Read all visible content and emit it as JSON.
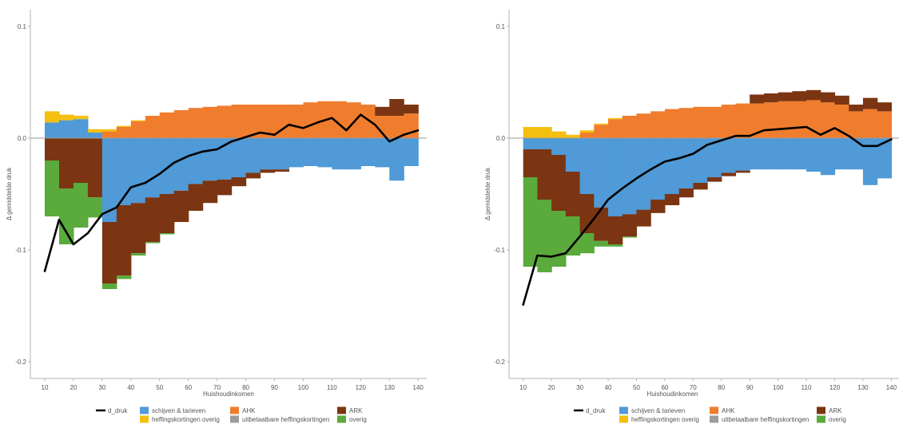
{
  "chart_data": [
    {
      "type": "area",
      "xlabel": "Huishoudinkomen",
      "ylabel": "Δ gemiddelde druk",
      "xlim": [
        5,
        143
      ],
      "ylim": [
        -0.215,
        0.115
      ],
      "xticks": [
        10,
        20,
        30,
        40,
        50,
        60,
        70,
        80,
        90,
        100,
        110,
        120,
        130,
        140
      ],
      "yticks": [
        -0.2,
        -0.1,
        0.0,
        0.1
      ],
      "ytick_labels": [
        "-0.2",
        "-0.1",
        "0.0",
        "0.1"
      ],
      "x": [
        12.5,
        17.5,
        22.5,
        27.5,
        32.5,
        37.5,
        42.5,
        47.5,
        52.5,
        57.5,
        62.5,
        67.5,
        72.5,
        77.5,
        82.5,
        87.5,
        92.5,
        97.5,
        102.5,
        107.5,
        112.5,
        117.5,
        122.5,
        127.5,
        132.5,
        137.5
      ],
      "series": [
        {
          "name": "schijven & tarieven",
          "values": [
            0.014,
            0.016,
            0.017,
            0.005,
            -0.075,
            -0.06,
            -0.058,
            -0.053,
            -0.05,
            -0.047,
            -0.041,
            -0.038,
            -0.037,
            -0.035,
            -0.031,
            -0.028,
            -0.028,
            -0.026,
            -0.025,
            -0.026,
            -0.028,
            -0.028,
            -0.025,
            -0.026,
            -0.038,
            -0.025
          ]
        },
        {
          "name": "AHK",
          "values": [
            0.0,
            0.0,
            0.0,
            0.0,
            0.006,
            0.01,
            0.015,
            0.02,
            0.023,
            0.025,
            0.027,
            0.028,
            0.029,
            0.03,
            0.03,
            0.03,
            0.03,
            0.03,
            0.032,
            0.033,
            0.033,
            0.032,
            0.03,
            0.02,
            0.02,
            0.022
          ]
        },
        {
          "name": "ARK",
          "values": [
            -0.02,
            -0.045,
            -0.04,
            -0.053,
            -0.055,
            -0.063,
            -0.045,
            -0.04,
            -0.035,
            -0.028,
            -0.024,
            -0.02,
            -0.014,
            -0.008,
            -0.005,
            -0.003,
            -0.002,
            0.0,
            0.0,
            0.0,
            0.0,
            0.0,
            0.0,
            0.008,
            0.015,
            0.008
          ]
        },
        {
          "name": "heffingskortingen overig",
          "values": [
            0.01,
            0.005,
            0.003,
            0.003,
            0.002,
            0.001,
            0.001,
            0.0,
            0.0,
            0.0,
            0.0,
            0.0,
            0.0,
            0.0,
            0.0,
            0.0,
            0.0,
            0.0,
            0.0,
            0.0,
            0.0,
            0.0,
            0.0,
            0.0,
            0.0,
            0.0
          ]
        },
        {
          "name": "uitbetaalbare heffingskortingen",
          "values": [
            0.0,
            0.0,
            0.0,
            0.0,
            0.0,
            0.0,
            0.0,
            0.0,
            0.0,
            0.0,
            0.0,
            0.0,
            0.0,
            0.0,
            0.0,
            0.0,
            0.0,
            0.0,
            0.0,
            0.0,
            0.0,
            0.0,
            0.0,
            0.0,
            0.0,
            0.0
          ]
        },
        {
          "name": "overig",
          "values": [
            -0.05,
            -0.05,
            -0.04,
            -0.018,
            -0.005,
            -0.003,
            -0.002,
            -0.001,
            -0.001,
            0.0,
            0.0,
            0.0,
            0.0,
            0.0,
            0.0,
            0.0,
            0.0,
            0.0,
            0.0,
            0.0,
            0.0,
            0.0,
            0.0,
            0.0,
            0.0,
            0.0
          ]
        }
      ],
      "line": {
        "name": "d_druk",
        "x": [
          10,
          15,
          20,
          25,
          30,
          35,
          40,
          45,
          50,
          55,
          60,
          65,
          70,
          75,
          80,
          85,
          90,
          95,
          100,
          105,
          110,
          115,
          120,
          125,
          130,
          135,
          140
        ],
        "values": [
          -0.119,
          -0.073,
          -0.095,
          -0.085,
          -0.068,
          -0.062,
          -0.044,
          -0.04,
          -0.032,
          -0.022,
          -0.016,
          -0.012,
          -0.01,
          -0.003,
          0.001,
          0.005,
          0.003,
          0.012,
          0.009,
          0.014,
          0.018,
          0.007,
          0.021,
          0.012,
          -0.003,
          0.003,
          0.007
        ]
      }
    },
    {
      "type": "area",
      "xlabel": "Huishoudinkomen",
      "ylabel": "Δ gemiddelde druk",
      "xlim": [
        5,
        143
      ],
      "ylim": [
        -0.215,
        0.115
      ],
      "xticks": [
        10,
        20,
        30,
        40,
        50,
        60,
        70,
        80,
        90,
        100,
        110,
        120,
        130,
        140
      ],
      "yticks": [
        -0.2,
        -0.1,
        0.0,
        0.1
      ],
      "ytick_labels": [
        "-0.2",
        "-0.1",
        "0.0",
        "0.1"
      ],
      "x": [
        12.5,
        17.5,
        22.5,
        27.5,
        32.5,
        37.5,
        42.5,
        47.5,
        52.5,
        57.5,
        62.5,
        67.5,
        72.5,
        77.5,
        82.5,
        87.5,
        92.5,
        97.5,
        102.5,
        107.5,
        112.5,
        117.5,
        122.5,
        127.5,
        132.5,
        137.5
      ],
      "series": [
        {
          "name": "schijven & tarieven",
          "values": [
            -0.01,
            -0.01,
            -0.015,
            -0.03,
            -0.05,
            -0.062,
            -0.07,
            -0.068,
            -0.064,
            -0.055,
            -0.05,
            -0.045,
            -0.04,
            -0.035,
            -0.031,
            -0.029,
            -0.028,
            -0.028,
            -0.028,
            -0.028,
            -0.03,
            -0.033,
            -0.028,
            -0.028,
            -0.042,
            -0.036
          ]
        },
        {
          "name": "AHK",
          "values": [
            0.0,
            0.0,
            0.0,
            0.0,
            0.005,
            0.012,
            0.017,
            0.02,
            0.022,
            0.024,
            0.026,
            0.027,
            0.028,
            0.028,
            0.03,
            0.031,
            0.031,
            0.032,
            0.033,
            0.033,
            0.034,
            0.032,
            0.03,
            0.024,
            0.026,
            0.024
          ]
        },
        {
          "name": "ARK",
          "values": [
            -0.025,
            -0.045,
            -0.05,
            -0.04,
            -0.035,
            -0.03,
            -0.025,
            -0.02,
            -0.015,
            -0.012,
            -0.01,
            -0.008,
            -0.006,
            -0.004,
            -0.003,
            -0.002,
            0.008,
            0.008,
            0.008,
            0.009,
            0.009,
            0.009,
            0.008,
            0.006,
            0.01,
            0.008
          ]
        },
        {
          "name": "heffingskortingen overig",
          "values": [
            0.01,
            0.01,
            0.006,
            0.003,
            0.002,
            0.001,
            0.001,
            0.0,
            0.0,
            0.0,
            0.0,
            0.0,
            0.0,
            0.0,
            0.0,
            0.0,
            0.0,
            0.0,
            0.0,
            0.0,
            0.0,
            0.0,
            0.0,
            0.0,
            0.0,
            0.0
          ]
        },
        {
          "name": "uitbetaalbare heffingskortingen",
          "values": [
            0.0,
            0.0,
            0.0,
            0.0,
            0.0,
            0.0,
            0.0,
            0.0,
            0.0,
            0.0,
            0.0,
            0.0,
            0.0,
            0.0,
            0.0,
            0.0,
            0.0,
            0.0,
            0.0,
            0.0,
            0.0,
            0.0,
            0.0,
            0.0,
            0.0,
            0.0
          ]
        },
        {
          "name": "overig",
          "values": [
            -0.08,
            -0.065,
            -0.05,
            -0.035,
            -0.018,
            -0.005,
            -0.002,
            -0.001,
            0.0,
            0.0,
            0.0,
            0.0,
            0.0,
            0.0,
            0.0,
            0.0,
            0.0,
            0.0,
            0.0,
            0.0,
            0.0,
            0.0,
            0.0,
            0.0,
            0.0,
            0.0
          ]
        }
      ],
      "line": {
        "name": "d_druk",
        "x": [
          10,
          15,
          20,
          25,
          30,
          35,
          40,
          45,
          50,
          55,
          60,
          65,
          70,
          75,
          80,
          85,
          90,
          95,
          100,
          105,
          110,
          115,
          120,
          125,
          130,
          135,
          140
        ],
        "values": [
          -0.149,
          -0.105,
          -0.106,
          -0.103,
          -0.088,
          -0.072,
          -0.055,
          -0.045,
          -0.036,
          -0.028,
          -0.021,
          -0.018,
          -0.014,
          -0.006,
          -0.002,
          0.002,
          0.002,
          0.007,
          0.008,
          0.009,
          0.01,
          0.003,
          0.009,
          0.002,
          -0.007,
          -0.007,
          -0.001
        ]
      }
    }
  ],
  "legend": {
    "items": [
      {
        "label": "d_druk",
        "color": "#000000",
        "kind": "line"
      },
      {
        "label": "schijven & tarieven",
        "color": "#4f9ad7",
        "kind": "box"
      },
      {
        "label": "AHK",
        "color": "#f07d2e",
        "kind": "box"
      },
      {
        "label": "ARK",
        "color": "#7b3512",
        "kind": "box"
      },
      {
        "label": "heffingskortingen overig",
        "color": "#f5bf10",
        "kind": "box"
      },
      {
        "label": "uitbetaalbare heffingskortingen",
        "color": "#9c9c9c",
        "kind": "box"
      },
      {
        "label": "overig",
        "color": "#5aaa3c",
        "kind": "box"
      }
    ]
  },
  "colors": {
    "schijven & tarieven": "#4f9ad7",
    "AHK": "#f07d2e",
    "ARK": "#7b3512",
    "heffingskortingen overig": "#f5bf10",
    "uitbetaalbare heffingskortingen": "#9c9c9c",
    "overig": "#5aaa3c",
    "line": "#000000",
    "zero_line": "#9a9a9a",
    "axis": "#b0b0b0",
    "text": "#555555"
  }
}
